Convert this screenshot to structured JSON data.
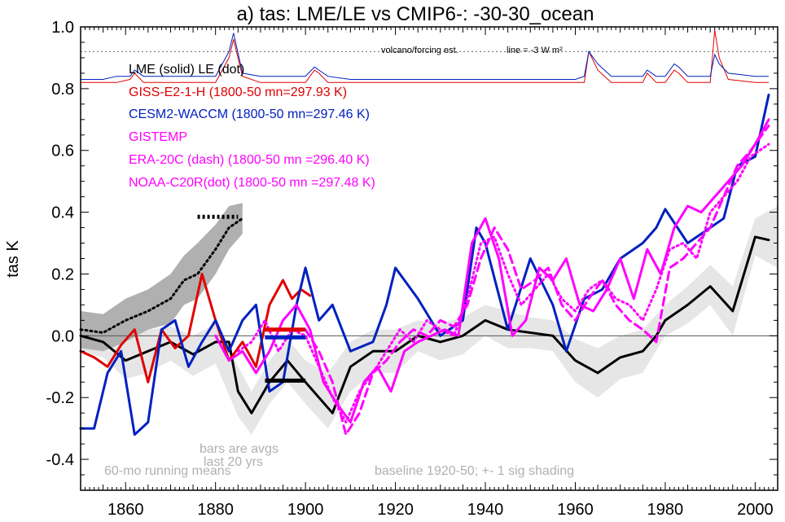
{
  "chart_data": {
    "type": "line",
    "title": "a) tas: LME/LE vs CMIP6-: -30-30_ocean",
    "ylabel": "tas K",
    "xlabel": "",
    "xlim": [
      1850,
      2005
    ],
    "ylim": [
      -0.5,
      1.0
    ],
    "xticks": [
      "1860",
      "1880",
      "1900",
      "1920",
      "1940",
      "1960",
      "1980",
      "2000"
    ],
    "yticks": [
      "-0.4",
      "-0.2",
      "0.0",
      "0.2",
      "0.4",
      "0.6",
      "0.8",
      "1.0"
    ],
    "grid": false,
    "legend_lines": [
      "LME (solid)   LE (dot)",
      "GISS-E2-1-H (1800-50 mn=297.93 K)",
      "CESM2-WACCM (1800-50 mn=297.46 K)",
      "GISTEMP",
      "ERA-20C (dash) (1800-50 mn =296.40 K)",
      "NOAA-C20R(dot) (1800-50 mn =297.48 K)"
    ],
    "annotations": {
      "volcano": "volcano/forcing est.",
      "forcing_line": "line = -3 W m²",
      "bars_note_1": "bars are avgs",
      "bars_note_2": "last 20 yrs",
      "running_mean": "60-mo running means",
      "baseline": "baseline 1920-50; +- 1 sig shading"
    },
    "colors": {
      "lme": "#000000",
      "le": "#000000",
      "giss": "#e00000",
      "cesm2": "#0020c0",
      "gistemp": "#ff00ff",
      "era20c": "#ff00ff",
      "noaa": "#ff00ff",
      "shading": "#e6e6e6",
      "le_shading": "#b0b0b0",
      "volcano_line": "#808080"
    },
    "series": [
      {
        "key": "lme",
        "style": "solid",
        "x": [
          1850,
          1855,
          1860,
          1865,
          1870,
          1875,
          1880,
          1883,
          1885,
          1888,
          1892,
          1896,
          1900,
          1903,
          1906,
          1910,
          1915,
          1920,
          1925,
          1930,
          1935,
          1940,
          1945,
          1950,
          1955,
          1960,
          1965,
          1970,
          1975,
          1978,
          1980,
          1985,
          1990,
          1995,
          2000,
          2003
        ],
        "y": [
          0.0,
          -0.02,
          -0.08,
          -0.05,
          -0.02,
          -0.06,
          -0.02,
          -0.02,
          -0.18,
          -0.25,
          -0.15,
          -0.08,
          -0.15,
          -0.2,
          -0.25,
          -0.1,
          -0.05,
          -0.05,
          0.0,
          -0.02,
          0.0,
          0.05,
          0.02,
          0.01,
          0.0,
          -0.08,
          -0.12,
          -0.07,
          -0.05,
          0.0,
          0.05,
          0.1,
          0.16,
          0.08,
          0.32,
          0.31
        ]
      },
      {
        "key": "le",
        "style": "dot",
        "x": [
          1850,
          1855,
          1860,
          1865,
          1870,
          1873,
          1876,
          1880,
          1883,
          1886
        ],
        "y": [
          0.02,
          0.01,
          0.05,
          0.08,
          0.12,
          0.18,
          0.2,
          0.28,
          0.35,
          0.38
        ]
      },
      {
        "key": "giss",
        "style": "solid",
        "x": [
          1850,
          1853,
          1856,
          1859,
          1862,
          1865,
          1868,
          1871,
          1874,
          1877,
          1880,
          1883,
          1886,
          1889,
          1892,
          1895,
          1897,
          1899,
          1901
        ],
        "y": [
          -0.05,
          -0.07,
          -0.1,
          -0.03,
          0.02,
          -0.15,
          0.02,
          -0.04,
          0.0,
          0.2,
          0.05,
          -0.08,
          -0.02,
          -0.1,
          0.1,
          0.18,
          0.12,
          0.15,
          0.13
        ]
      },
      {
        "key": "cesm2",
        "style": "solid",
        "x": [
          1850,
          1853,
          1856,
          1859,
          1862,
          1865,
          1868,
          1871,
          1874,
          1877,
          1880,
          1883,
          1886,
          1889,
          1892,
          1895,
          1898,
          1900,
          1903,
          1906,
          1910,
          1915,
          1918,
          1920,
          1925,
          1930,
          1935,
          1938,
          1940,
          1945,
          1950,
          1955,
          1958,
          1962,
          1966,
          1970,
          1975,
          1978,
          1980,
          1985,
          1990,
          1993,
          1996,
          2000,
          2003
        ],
        "y": [
          -0.3,
          -0.3,
          -0.12,
          -0.05,
          -0.32,
          -0.28,
          0.02,
          0.05,
          -0.1,
          -0.02,
          0.05,
          -0.05,
          0.05,
          0.1,
          -0.18,
          -0.15,
          0.1,
          0.22,
          0.05,
          0.1,
          -0.05,
          -0.02,
          0.1,
          0.22,
          0.12,
          0.0,
          0.05,
          0.35,
          0.3,
          0.02,
          0.25,
          0.1,
          -0.05,
          0.12,
          0.15,
          0.25,
          0.3,
          0.35,
          0.41,
          0.3,
          0.35,
          0.38,
          0.55,
          0.58,
          0.78
        ]
      },
      {
        "key": "gistemp",
        "style": "solid",
        "x": [
          1880,
          1883,
          1886,
          1889,
          1892,
          1895,
          1898,
          1901,
          1904,
          1907,
          1910,
          1913,
          1916,
          1919,
          1922,
          1925,
          1928,
          1931,
          1934,
          1937,
          1940,
          1943,
          1946,
          1949,
          1952,
          1955,
          1958,
          1961,
          1964,
          1967,
          1970,
          1973,
          1976,
          1979,
          1982,
          1985,
          1988,
          1991,
          1994,
          1997,
          2000,
          2003
        ],
        "y": [
          0.0,
          -0.08,
          -0.05,
          -0.12,
          -0.05,
          0.05,
          0.1,
          0.02,
          -0.15,
          -0.22,
          -0.28,
          -0.15,
          -0.1,
          -0.18,
          -0.05,
          -0.02,
          0.0,
          0.02,
          0.0,
          0.3,
          0.38,
          0.25,
          0.0,
          0.05,
          0.22,
          0.18,
          0.25,
          0.1,
          0.08,
          0.15,
          0.25,
          0.12,
          0.28,
          0.2,
          0.35,
          0.42,
          0.4,
          0.45,
          0.5,
          0.55,
          0.62,
          0.7
        ]
      },
      {
        "key": "era20c",
        "style": "dash",
        "x": [
          1900,
          1903,
          1906,
          1909,
          1912,
          1915,
          1918,
          1921,
          1924,
          1927,
          1930,
          1933,
          1936,
          1939,
          1942,
          1945,
          1948,
          1951,
          1954,
          1957,
          1960,
          1963,
          1966,
          1969,
          1972,
          1975,
          1978,
          1981,
          1984,
          1987,
          1990,
          1993,
          1996,
          1999,
          2003
        ],
        "y": [
          0.02,
          -0.05,
          -0.15,
          -0.32,
          -0.25,
          -0.12,
          -0.08,
          -0.02,
          0.02,
          0.0,
          0.05,
          0.03,
          0.1,
          0.25,
          0.35,
          0.28,
          0.15,
          0.18,
          0.22,
          0.1,
          0.05,
          0.12,
          0.18,
          0.1,
          0.05,
          0.02,
          -0.02,
          0.22,
          0.25,
          0.3,
          0.35,
          0.45,
          0.55,
          0.6,
          0.68
        ]
      },
      {
        "key": "noaa",
        "style": "dot",
        "x": [
          1885,
          1888,
          1891,
          1894,
          1897,
          1900,
          1903,
          1906,
          1909,
          1912,
          1915,
          1918,
          1921,
          1924,
          1927,
          1930,
          1933,
          1936,
          1939,
          1942,
          1945,
          1948,
          1951,
          1954,
          1957,
          1960,
          1963,
          1966,
          1969,
          1972,
          1975,
          1978,
          1981,
          1984,
          1987,
          1990,
          1993,
          1996,
          1999,
          2003
        ],
        "y": [
          -0.05,
          -0.02,
          0.05,
          -0.05,
          0.02,
          0.0,
          -0.1,
          -0.2,
          -0.28,
          -0.18,
          -0.12,
          -0.05,
          0.02,
          -0.02,
          0.05,
          0.02,
          0.0,
          0.12,
          0.3,
          0.32,
          0.2,
          0.1,
          0.15,
          0.2,
          0.12,
          0.08,
          0.15,
          0.18,
          0.12,
          0.1,
          0.05,
          0.15,
          0.28,
          0.3,
          0.25,
          0.4,
          0.45,
          0.5,
          0.58,
          0.62
        ]
      }
    ],
    "volcano_forcing": {
      "x": [
        1850,
        1855,
        1858,
        1861,
        1862,
        1864,
        1870,
        1875,
        1880,
        1883,
        1884,
        1886,
        1890,
        1895,
        1900,
        1902,
        1903,
        1905,
        1910,
        1920,
        1930,
        1940,
        1950,
        1955,
        1960,
        1962,
        1963,
        1965,
        1968,
        1970,
        1975,
        1976,
        1978,
        1980,
        1982,
        1983,
        1985,
        1990,
        1991,
        1992,
        1994,
        2000,
        2003
      ],
      "blue": [
        0.83,
        0.83,
        0.84,
        0.84,
        0.86,
        0.84,
        0.84,
        0.84,
        0.84,
        0.92,
        0.98,
        0.85,
        0.84,
        0.84,
        0.84,
        0.87,
        0.86,
        0.84,
        0.83,
        0.83,
        0.83,
        0.83,
        0.83,
        0.83,
        0.83,
        0.84,
        0.92,
        0.88,
        0.84,
        0.84,
        0.84,
        0.86,
        0.84,
        0.84,
        0.88,
        0.87,
        0.84,
        0.84,
        0.91,
        0.88,
        0.85,
        0.84,
        0.84
      ],
      "red": [
        0.82,
        0.82,
        0.82,
        0.83,
        0.85,
        0.82,
        0.82,
        0.82,
        0.82,
        0.9,
        0.96,
        0.84,
        0.82,
        0.82,
        0.82,
        0.86,
        0.85,
        0.82,
        0.82,
        0.82,
        0.82,
        0.82,
        0.82,
        0.82,
        0.82,
        0.82,
        0.92,
        0.86,
        0.82,
        0.82,
        0.82,
        0.85,
        0.82,
        0.82,
        0.86,
        0.85,
        0.82,
        0.82,
        0.99,
        0.9,
        0.83,
        0.82,
        0.82
      ],
      "dotted_level": 0.92
    },
    "shading": {
      "x": [
        1850,
        1855,
        1860,
        1865,
        1870,
        1875,
        1880,
        1885,
        1888,
        1892,
        1896,
        1900,
        1905,
        1910,
        1915,
        1920,
        1925,
        1930,
        1935,
        1940,
        1945,
        1950,
        1955,
        1960,
        1965,
        1970,
        1975,
        1980,
        1985,
        1990,
        1995,
        2000,
        2005
      ],
      "upper": [
        0.04,
        0.03,
        -0.02,
        0.02,
        0.03,
        0.0,
        0.04,
        -0.1,
        -0.18,
        -0.08,
        -0.01,
        -0.08,
        -0.12,
        -0.02,
        0.02,
        0.02,
        0.05,
        0.04,
        0.06,
        0.1,
        0.08,
        0.06,
        0.05,
        -0.01,
        -0.04,
        0.0,
        0.02,
        0.1,
        0.16,
        0.23,
        0.16,
        0.38,
        0.42
      ],
      "lower": [
        -0.05,
        -0.07,
        -0.14,
        -0.12,
        -0.08,
        -0.13,
        -0.09,
        -0.26,
        -0.32,
        -0.22,
        -0.15,
        -0.22,
        -0.3,
        -0.18,
        -0.12,
        -0.12,
        -0.05,
        -0.08,
        -0.06,
        0.0,
        -0.04,
        -0.04,
        -0.05,
        -0.15,
        -0.2,
        -0.14,
        -0.12,
        0.0,
        0.04,
        0.1,
        0.0,
        0.26,
        0.22
      ]
    },
    "le_shading": {
      "x": [
        1850,
        1855,
        1860,
        1865,
        1870,
        1873,
        1876,
        1880,
        1883,
        1886
      ],
      "upper": [
        0.08,
        0.07,
        0.12,
        0.15,
        0.2,
        0.26,
        0.3,
        0.36,
        0.42,
        0.43
      ],
      "lower": [
        -0.04,
        -0.05,
        -0.02,
        0.02,
        0.04,
        0.1,
        0.12,
        0.2,
        0.28,
        0.33
      ]
    },
    "bars": [
      {
        "key": "giss",
        "x": [
          1891,
          1900
        ],
        "y": 0.02
      },
      {
        "key": "cesm2",
        "x": [
          1891,
          1900
        ],
        "y": -0.005
      },
      {
        "key": "lme",
        "x": [
          1891,
          1900
        ],
        "y": -0.145
      },
      {
        "key": "le",
        "x": [
          1876,
          1885
        ],
        "y": 0.385
      }
    ]
  }
}
